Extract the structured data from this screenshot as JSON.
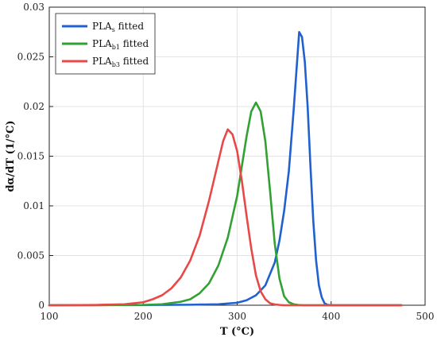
{
  "chart_data": {
    "type": "line",
    "xlabel": "T (°C)",
    "ylabel": "dα/dT (1/°C)",
    "xlim": [
      100,
      500
    ],
    "ylim": [
      0,
      0.03
    ],
    "xticks": [
      100,
      200,
      300,
      400,
      500
    ],
    "yticks": [
      0,
      0.005,
      0.01,
      0.015,
      0.02,
      0.025,
      0.03
    ],
    "ytick_labels": [
      "0",
      "0.005",
      "0.01",
      "0.015",
      "0.02",
      "0.025",
      "0.03"
    ],
    "grid": true,
    "legend_position": "top-left",
    "series": [
      {
        "name": "PLAs fitted",
        "legend_main": "PLA",
        "legend_sub": "s",
        "legend_suffix": " fitted",
        "color": "#2060d0",
        "x": [
          100,
          200,
          250,
          280,
          300,
          310,
          320,
          330,
          340,
          345,
          350,
          355,
          360,
          363,
          366,
          369,
          372,
          375,
          378,
          381,
          384,
          387,
          390,
          393,
          396,
          400,
          410,
          450,
          475
        ],
        "y": [
          0,
          2e-05,
          5e-05,
          0.0001,
          0.00025,
          0.0005,
          0.001,
          0.002,
          0.0043,
          0.0065,
          0.0095,
          0.0135,
          0.0195,
          0.0235,
          0.0275,
          0.027,
          0.0245,
          0.02,
          0.014,
          0.0085,
          0.0045,
          0.002,
          0.0008,
          0.0002,
          5e-05,
          0,
          0,
          0,
          0
        ]
      },
      {
        "name": "PLAb1 fitted",
        "legend_main": "PLA",
        "legend_sub": "b1",
        "legend_suffix": " fitted",
        "color": "#33a033",
        "x": [
          100,
          200,
          220,
          240,
          250,
          260,
          270,
          280,
          290,
          300,
          305,
          310,
          315,
          320,
          325,
          330,
          335,
          340,
          345,
          350,
          355,
          360,
          365,
          370,
          380,
          400,
          450,
          475
        ],
        "y": [
          0,
          3e-05,
          0.0001,
          0.00035,
          0.0006,
          0.0012,
          0.0022,
          0.004,
          0.0068,
          0.011,
          0.014,
          0.017,
          0.0195,
          0.0204,
          0.0195,
          0.0165,
          0.0115,
          0.0062,
          0.0027,
          0.0009,
          0.0003,
          0.0001,
          3e-05,
          0,
          0,
          0,
          0,
          0
        ]
      },
      {
        "name": "PLAb3 fitted",
        "legend_main": "PLA",
        "legend_sub": "b3",
        "legend_suffix": " fitted",
        "color": "#e84848",
        "x": [
          100,
          150,
          180,
          200,
          210,
          220,
          230,
          240,
          250,
          260,
          270,
          280,
          285,
          290,
          295,
          300,
          305,
          310,
          315,
          320,
          325,
          330,
          335,
          340,
          345,
          350,
          360,
          380,
          450,
          475
        ],
        "y": [
          0,
          3e-05,
          0.0001,
          0.0003,
          0.0006,
          0.001,
          0.0017,
          0.0028,
          0.0045,
          0.007,
          0.0105,
          0.0145,
          0.0165,
          0.0177,
          0.0172,
          0.0155,
          0.0125,
          0.009,
          0.0057,
          0.003,
          0.0014,
          0.0006,
          0.0002,
          8e-05,
          3e-05,
          0,
          0,
          0,
          0,
          0
        ]
      }
    ]
  }
}
